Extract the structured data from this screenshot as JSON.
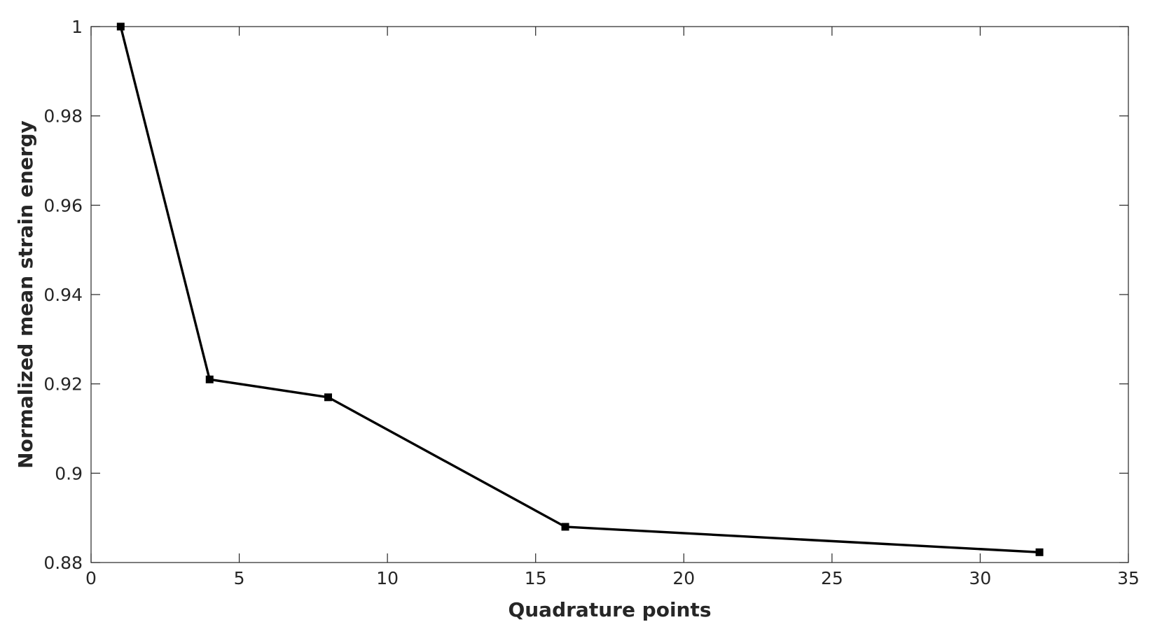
{
  "chart_data": {
    "type": "line",
    "title": "",
    "xlabel": "Quadrature points",
    "ylabel": "Normalized mean strain energy",
    "xlim": [
      0,
      35
    ],
    "ylim": [
      0.88,
      1.0
    ],
    "x_ticks": [
      0,
      5,
      10,
      15,
      20,
      25,
      30,
      35
    ],
    "x_tick_labels": [
      "0",
      "5",
      "10",
      "15",
      "20",
      "25",
      "30",
      "35"
    ],
    "y_ticks": [
      0.88,
      0.9,
      0.92,
      0.94,
      0.96,
      0.98,
      1.0
    ],
    "y_tick_labels": [
      "0.88",
      "0.9",
      "0.92",
      "0.94",
      "0.96",
      "0.98",
      "1"
    ],
    "grid": false,
    "box": true,
    "series": [
      {
        "x": [
          1,
          4,
          8,
          16,
          32
        ],
        "y": [
          1.0,
          0.921,
          0.917,
          0.888,
          0.8823
        ],
        "color": "#000000",
        "marker": "square"
      }
    ]
  }
}
